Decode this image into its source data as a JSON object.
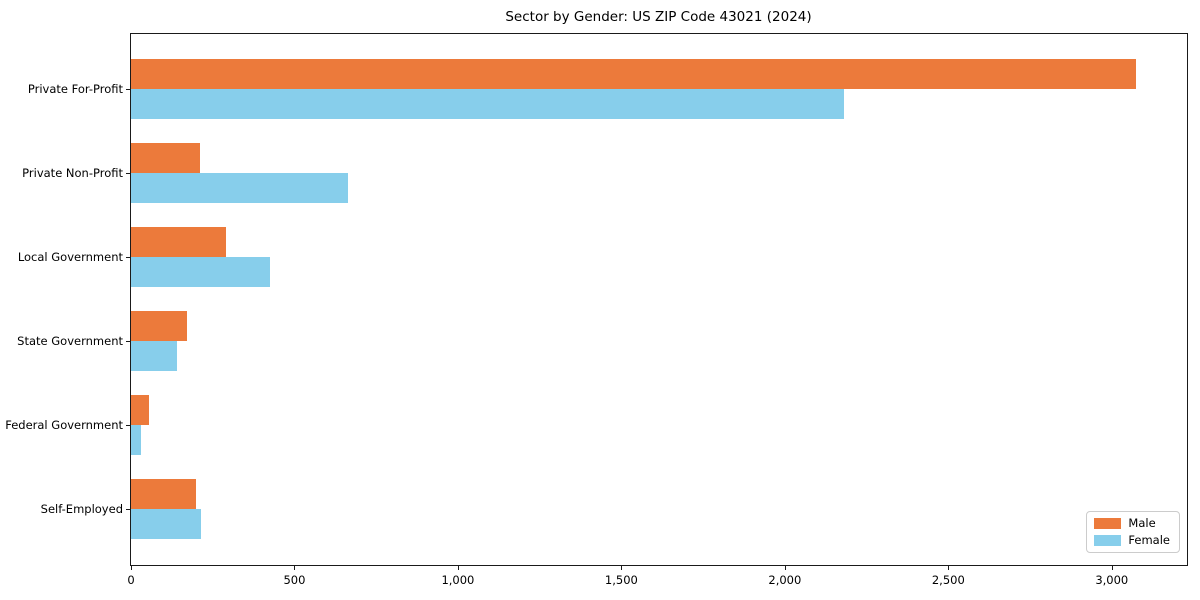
{
  "chart_data": {
    "type": "bar",
    "orientation": "horizontal",
    "title": "Sector by Gender: US ZIP Code 43021 (2024)",
    "categories": [
      "Private For-Profit",
      "Private Non-Profit",
      "Local Government",
      "State Government",
      "Federal Government",
      "Self-Employed"
    ],
    "series": [
      {
        "name": "Male",
        "color": "#ec7a3b",
        "values": [
          3075,
          210,
          290,
          170,
          55,
          200
        ]
      },
      {
        "name": "Female",
        "color": "#87ceeb",
        "values": [
          2180,
          665,
          425,
          140,
          30,
          215
        ]
      }
    ],
    "xlabel": "",
    "ylabel": "",
    "xlim": [
      0,
      3230
    ],
    "xticks": [
      0,
      500,
      1000,
      1500,
      2000,
      2500,
      3000
    ],
    "xtick_labels": [
      "0",
      "500",
      "1,000",
      "1,500",
      "2,000",
      "2,500",
      "3,000"
    ],
    "grid": false,
    "legend_position": "lower right"
  },
  "colors": {
    "axis": "#1a1a1a",
    "text": "#000000",
    "legend_border": "#cccccc",
    "background": "#ffffff"
  }
}
